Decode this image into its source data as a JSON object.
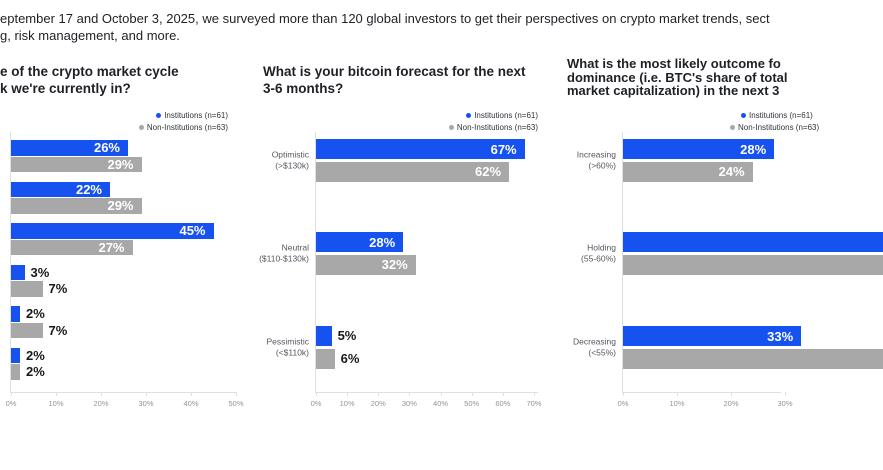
{
  "intro": {
    "line1": "eptember 17 and October 3, 2025, we surveyed more than 120 global investors to get their perspectives on crypto market trends, sect",
    "line2": "g, risk management, and more."
  },
  "legend": {
    "institutions": "Institutions (n=61)",
    "non_institutions": "Non-Institutions (n=63)"
  },
  "colors": {
    "institutions_blue": "#1652f0",
    "non_institutions_gray": "#a8a8a8",
    "axis": "#dcdfe4",
    "tick_text": "#8f959c",
    "text": "#1d2025"
  },
  "charts": [
    {
      "title_lines": [
        "e of the crypto market cycle",
        "k we're currently in?"
      ],
      "x_ticks": [
        "0%",
        "10%",
        "20%",
        "30%",
        "40%",
        "50%"
      ],
      "rows": [
        {
          "category_lines": [],
          "institutions": {
            "v": 26,
            "label": "26%",
            "inside": true
          },
          "non_institutions": {
            "v": 29,
            "label": "29%",
            "inside": true
          }
        },
        {
          "category_lines": [],
          "institutions": {
            "v": 22,
            "label": "22%",
            "inside": true
          },
          "non_institutions": {
            "v": 29,
            "label": "29%",
            "inside": true
          }
        },
        {
          "category_lines": [],
          "institutions": {
            "v": 45,
            "label": "45%",
            "inside": true
          },
          "non_institutions": {
            "v": 27,
            "label": "27%",
            "inside": true
          }
        },
        {
          "category_lines": [],
          "institutions": {
            "v": 3,
            "label": "3%",
            "inside": false
          },
          "non_institutions": {
            "v": 7,
            "label": "7%",
            "inside": false
          }
        },
        {
          "category_lines": [],
          "institutions": {
            "v": 2,
            "label": "2%",
            "inside": false
          },
          "non_institutions": {
            "v": 7,
            "label": "7%",
            "inside": false
          }
        },
        {
          "category_lines": [],
          "institutions": {
            "v": 2,
            "label": "2%",
            "inside": false
          },
          "non_institutions": {
            "v": 2,
            "label": "2%",
            "inside": false
          }
        }
      ]
    },
    {
      "title_lines": [
        "What is your bitcoin forecast for the next",
        "3-6 months?"
      ],
      "x_ticks": [
        "0%",
        "10%",
        "20%",
        "30%",
        "40%",
        "50%",
        "60%",
        "70%"
      ],
      "rows": [
        {
          "category_lines": [
            "Optimistic",
            "(>$130k)"
          ],
          "institutions": {
            "v": 67,
            "label": "67%",
            "inside": true
          },
          "non_institutions": {
            "v": 62,
            "label": "62%",
            "inside": true
          }
        },
        {
          "category_lines": [
            "Neutral",
            "($110-$130k)"
          ],
          "institutions": {
            "v": 28,
            "label": "28%",
            "inside": true
          },
          "non_institutions": {
            "v": 32,
            "label": "32%",
            "inside": true
          }
        },
        {
          "category_lines": [
            "Pessimistic",
            "(<$110k)"
          ],
          "institutions": {
            "v": 5,
            "label": "5%",
            "inside": false
          },
          "non_institutions": {
            "v": 6,
            "label": "6%",
            "inside": false
          }
        }
      ]
    },
    {
      "title_lines": [
        "What is the most likely outcome fo",
        "dominance (i.e. BTC's share of total",
        "market capitalization) in the next 3"
      ],
      "x_ticks": [
        "0%",
        "10%",
        "20%",
        "30%"
      ],
      "rows": [
        {
          "category_lines": [
            "Increasing",
            "(>60%)"
          ],
          "institutions": {
            "v": 28,
            "label": "28%",
            "inside": true
          },
          "non_institutions": {
            "v": 24,
            "label": "24%",
            "inside": true
          }
        },
        {
          "category_lines": [
            "Holding",
            "(55-60%)"
          ],
          "institutions": {
            "v": null,
            "label": "",
            "inside": true,
            "cut": true
          },
          "non_institutions": {
            "v": null,
            "label": "",
            "inside": true,
            "cut": true
          }
        },
        {
          "category_lines": [
            "Decreasing",
            "(<55%)"
          ],
          "institutions": {
            "v": 33,
            "label": "33%",
            "inside": true,
            "cut": true
          },
          "non_institutions": {
            "v": null,
            "label": "",
            "inside": true,
            "cut": true
          }
        }
      ]
    }
  ],
  "chart_data": [
    {
      "type": "bar",
      "orientation": "horizontal",
      "title": "e of the crypto market cycle k we're currently in?",
      "categories": [
        "",
        "",
        "",
        "",
        "",
        ""
      ],
      "series": [
        {
          "name": "Institutions (n=61)",
          "values": [
            26,
            22,
            45,
            3,
            2,
            2
          ]
        },
        {
          "name": "Non-Institutions (n=63)",
          "values": [
            29,
            29,
            27,
            7,
            7,
            2
          ]
        }
      ],
      "xlim": [
        0,
        50
      ],
      "x_ticks": [
        "0%",
        "10%",
        "20%",
        "30%",
        "40%",
        "50%"
      ],
      "legend_position": "top-right",
      "grid": false
    },
    {
      "type": "bar",
      "orientation": "horizontal",
      "title": "What is your bitcoin forecast for the next 3-6 months?",
      "categories": [
        "Optimistic (>$130k)",
        "Neutral ($110-$130k)",
        "Pessimistic (<$110k)"
      ],
      "series": [
        {
          "name": "Institutions (n=61)",
          "values": [
            67,
            28,
            5
          ]
        },
        {
          "name": "Non-Institutions (n=63)",
          "values": [
            62,
            32,
            6
          ]
        }
      ],
      "xlim": [
        0,
        70
      ],
      "x_ticks": [
        "0%",
        "10%",
        "20%",
        "30%",
        "40%",
        "50%",
        "60%",
        "70%"
      ],
      "legend_position": "top-right",
      "grid": false
    },
    {
      "type": "bar",
      "orientation": "horizontal",
      "title": "What is the most likely outcome fo dominance (i.e. BTC's share of total market capitalization) in the next 3",
      "categories": [
        "Increasing (>60%)",
        "Holding (55-60%)",
        "Decreasing (<55%)"
      ],
      "series": [
        {
          "name": "Institutions (n=61)",
          "values": [
            28,
            null,
            33
          ]
        },
        {
          "name": "Non-Institutions (n=63)",
          "values": [
            24,
            null,
            null
          ]
        }
      ],
      "xlim": [
        0,
        30
      ],
      "x_ticks": [
        "0%",
        "10%",
        "20%",
        "30%"
      ],
      "legend_position": "top-right",
      "grid": false
    }
  ]
}
